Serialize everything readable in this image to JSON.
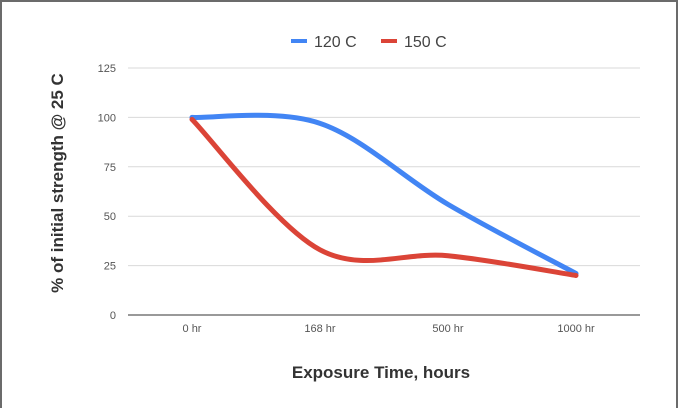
{
  "chart_data": {
    "type": "line",
    "categories": [
      "0 hr",
      "168 hr",
      "500 hr",
      "1000 hr"
    ],
    "series": [
      {
        "name": "120 C",
        "color": "#4285f4",
        "values": [
          100,
          97,
          56,
          21
        ]
      },
      {
        "name": "150 C",
        "color": "#db4437",
        "values": [
          99,
          33,
          30,
          20
        ]
      }
    ],
    "xlabel": "Exposure Time, hours",
    "ylabel": "% of initial strength @ 25 C",
    "ylim": [
      0,
      125
    ],
    "yticks": [
      0,
      25,
      50,
      75,
      100,
      125
    ],
    "grid": true,
    "legend_position": "top-center",
    "smooth": true
  }
}
